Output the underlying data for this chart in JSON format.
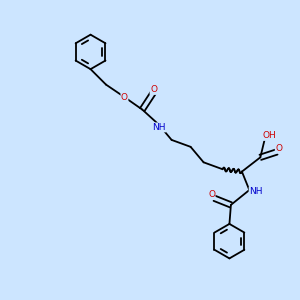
{
  "background_color": "#cce5ff",
  "bond_color": "#000000",
  "N_color": "#0000cc",
  "O_color": "#cc0000",
  "lw": 1.3,
  "fs": 6.5,
  "figsize": [
    3.0,
    3.0
  ],
  "dpi": 100,
  "xlim": [
    0,
    10
  ],
  "ylim": [
    0,
    10
  ]
}
